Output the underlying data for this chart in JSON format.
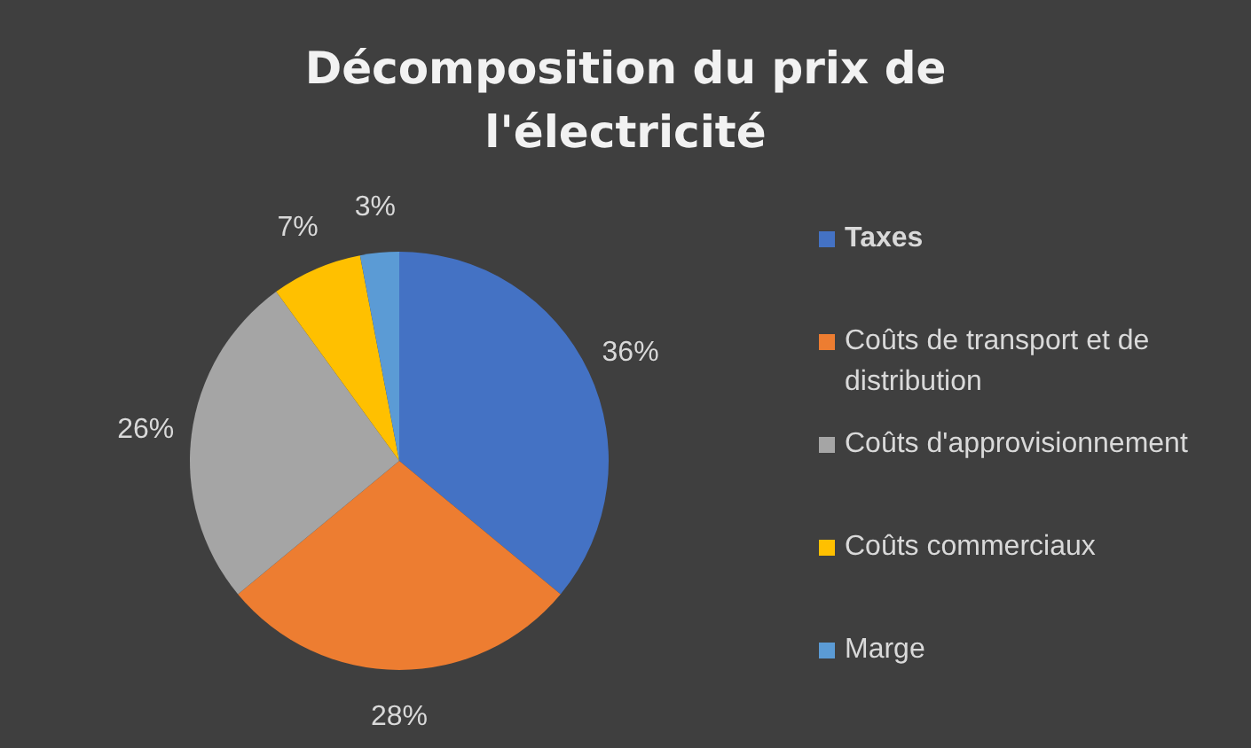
{
  "chart_data": {
    "type": "pie",
    "title": "Décomposition du prix de l'électricité",
    "categories": [
      "Taxes",
      "Coûts de transport et de distribution",
      "Coûts d'approvisionnement",
      "Coûts commerciaux",
      "Marge"
    ],
    "values": [
      36,
      28,
      26,
      7,
      3
    ],
    "colors": [
      "#4472c4",
      "#ed7d31",
      "#a5a5a5",
      "#ffc000",
      "#5b9bd5"
    ],
    "value_labels": [
      "36%",
      "28%",
      "26%",
      "7%",
      "3%"
    ],
    "legend": "right"
  }
}
